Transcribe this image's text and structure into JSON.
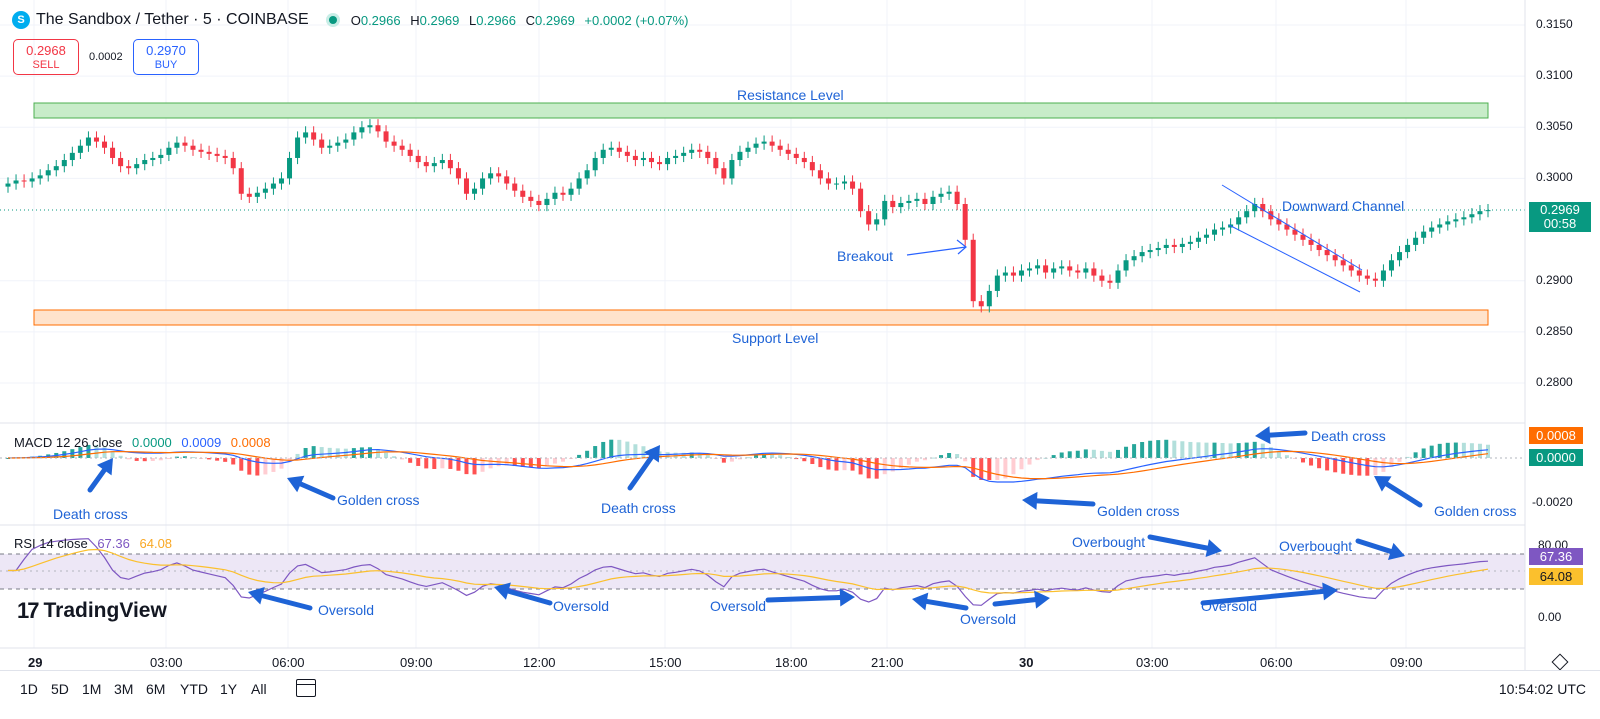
{
  "header": {
    "logo_letter": "S",
    "title": "The Sandbox / Tether · 5 · COINBASE",
    "ohlc": [
      {
        "k": "O",
        "v": "0.2966"
      },
      {
        "k": "H",
        "v": "0.2969"
      },
      {
        "k": "L",
        "v": "0.2966"
      },
      {
        "k": "C",
        "v": "0.2969"
      },
      {
        "k": "",
        "v": "+0.0002 (+0.07%)"
      }
    ]
  },
  "trade": {
    "sell_price": "0.2968",
    "sell_label": "SELL",
    "spread": "0.0002",
    "buy_price": "0.2970",
    "buy_label": "BUY"
  },
  "annotations": {
    "resistance": "Resistance Level",
    "support": "Support Level",
    "breakout": "Breakout",
    "channel": "Downward Channel",
    "macd_labels": [
      "Death cross",
      "Golden cross",
      "Death cross",
      "Golden cross",
      "Death cross",
      "Golden cross"
    ],
    "rsi_labels": [
      "Oversold",
      "Oversold",
      "Oversold",
      "Oversold",
      "Overbought",
      "Oversold",
      "Overbought"
    ]
  },
  "macd": {
    "label": "MACD 12 26 close",
    "hist": "0.0000",
    "macd": "0.0009",
    "signal": "0.0008",
    "badge_signal": "0.0008",
    "badge_hist": "0.0000",
    "axis_low": "-0.0020"
  },
  "rsi": {
    "label": "RSI 14 close",
    "rsi": "67.36",
    "ma": "64.08",
    "axis_top": "80.00",
    "axis_bottom": "0.00"
  },
  "price_axis": {
    "ticks": [
      "0.3150",
      "0.3100",
      "0.3050",
      "0.3000",
      "0.2900",
      "0.2850",
      "0.2800"
    ],
    "last_price": "0.2969",
    "countdown": "00:58"
  },
  "time_axis": [
    "29",
    "03:00",
    "06:00",
    "09:00",
    "12:00",
    "15:00",
    "18:00",
    "21:00",
    "30",
    "03:00",
    "06:00",
    "09:00"
  ],
  "footer": {
    "ranges": [
      "1D",
      "5D",
      "1M",
      "3M",
      "6M",
      "YTD",
      "1Y",
      "All"
    ],
    "utc": "10:54:02 UTC"
  },
  "branding": {
    "name": "TradingView"
  },
  "colors": {
    "up": "#089981",
    "down": "#f23645",
    "macd_line": "#2962ff",
    "signal_line": "#ff6d00",
    "rsi_line": "#7e57c2",
    "rsi_ma": "#fbc02d",
    "annotation": "#1e63d6"
  },
  "price_series": [
    0.2995,
    0.2998,
    0.2997,
    0.3,
    0.3003,
    0.3008,
    0.3012,
    0.3018,
    0.3025,
    0.3032,
    0.304,
    0.3036,
    0.303,
    0.302,
    0.3012,
    0.301,
    0.3014,
    0.3018,
    0.302,
    0.3023,
    0.303,
    0.3035,
    0.3032,
    0.3028,
    0.3026,
    0.3024,
    0.3022,
    0.302,
    0.301,
    0.2985,
    0.2982,
    0.2986,
    0.299,
    0.2995,
    0.3,
    0.302,
    0.304,
    0.3045,
    0.3038,
    0.303,
    0.3032,
    0.3035,
    0.3038,
    0.3045,
    0.305,
    0.3052,
    0.3046,
    0.3036,
    0.3032,
    0.3028,
    0.3022,
    0.3016,
    0.3012,
    0.3015,
    0.3018,
    0.301,
    0.3,
    0.2985,
    0.299,
    0.3,
    0.3005,
    0.3002,
    0.2995,
    0.2988,
    0.2982,
    0.2978,
    0.2974,
    0.298,
    0.2986,
    0.2984,
    0.299,
    0.3,
    0.3008,
    0.302,
    0.3028,
    0.303,
    0.3026,
    0.3022,
    0.3018,
    0.302,
    0.3016,
    0.3014,
    0.302,
    0.3022,
    0.3025,
    0.3028,
    0.3026,
    0.302,
    0.301,
    0.3,
    0.3018,
    0.3026,
    0.303,
    0.3034,
    0.3036,
    0.3032,
    0.3028,
    0.3024,
    0.302,
    0.3016,
    0.3008,
    0.3,
    0.2995,
    0.2995,
    0.2997,
    0.299,
    0.2968,
    0.2955,
    0.296,
    0.2978,
    0.2972,
    0.2976,
    0.2978,
    0.298,
    0.2975,
    0.2982,
    0.2985,
    0.2987,
    0.2975,
    0.294,
    0.288,
    0.2875,
    0.289,
    0.2905,
    0.2908,
    0.2905,
    0.291,
    0.2912,
    0.2915,
    0.2908,
    0.2912,
    0.2914,
    0.291,
    0.2908,
    0.2912,
    0.2905,
    0.29,
    0.2898,
    0.291,
    0.292,
    0.2924,
    0.2928,
    0.293,
    0.2932,
    0.2935,
    0.2933,
    0.2936,
    0.2938,
    0.2942,
    0.2945,
    0.295,
    0.2952,
    0.2955,
    0.2962,
    0.2968,
    0.2975,
    0.2968,
    0.296,
    0.2955,
    0.295,
    0.2945,
    0.294,
    0.2935,
    0.293,
    0.2925,
    0.292,
    0.2915,
    0.291,
    0.2905,
    0.2902,
    0.29,
    0.291,
    0.292,
    0.2928,
    0.2935,
    0.2942,
    0.2948,
    0.2952,
    0.2955,
    0.2958,
    0.296,
    0.2962,
    0.2965,
    0.2968,
    0.2969
  ]
}
